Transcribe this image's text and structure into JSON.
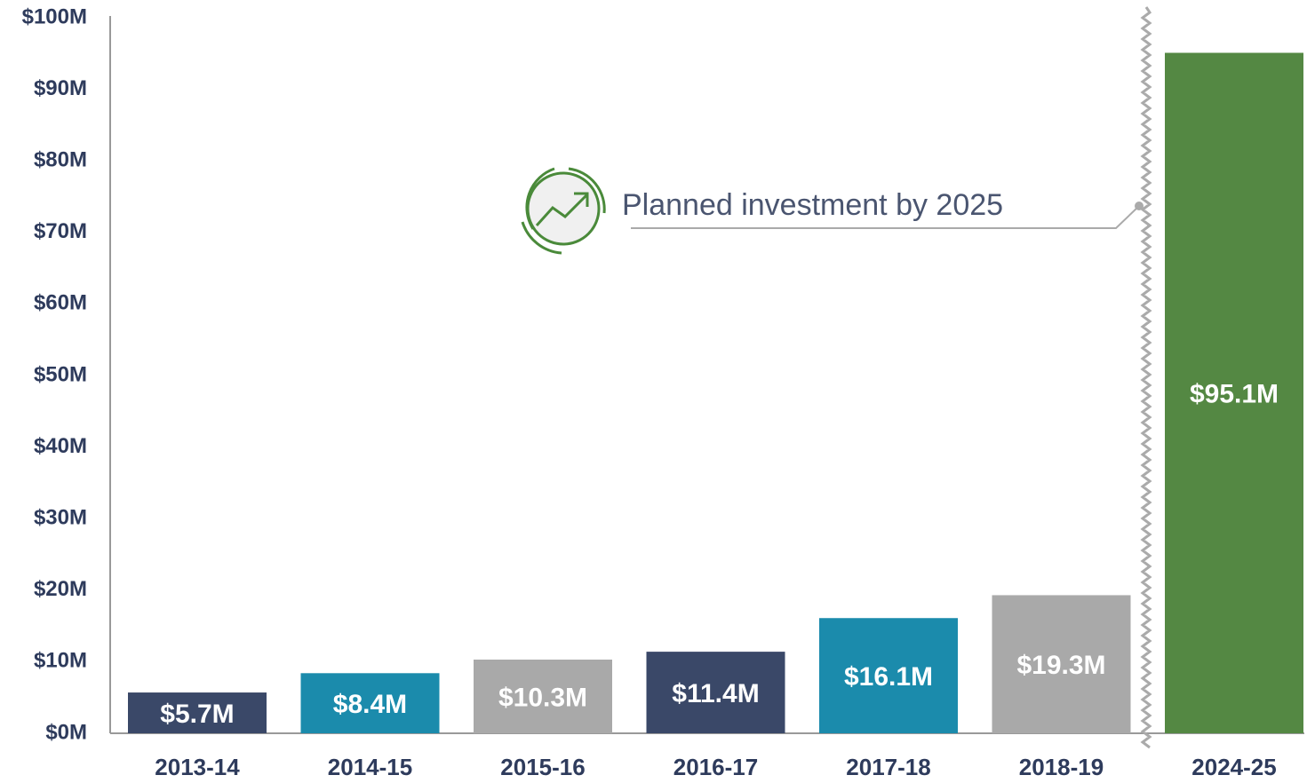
{
  "chart_data": {
    "type": "bar",
    "categories": [
      "2013-14",
      "2014-15",
      "2015-16",
      "2016-17",
      "2017-18",
      "2018-19",
      "2024-25"
    ],
    "values": [
      5.7,
      8.4,
      10.3,
      11.4,
      16.1,
      19.3,
      95.1
    ],
    "value_labels": [
      "$5.7M",
      "$8.4M",
      "$10.3M",
      "$11.4M",
      "$16.1M",
      "$19.3M",
      "$95.1M"
    ],
    "colors": [
      "#3a4868",
      "#1b8bac",
      "#a9a9a9",
      "#3a4868",
      "#1b8bac",
      "#a9a9a9",
      "#548843"
    ],
    "ylim": [
      0,
      100
    ],
    "yticks": [
      {
        "value": 0,
        "label": "$0M"
      },
      {
        "value": 10,
        "label": "$10M"
      },
      {
        "value": 20,
        "label": "$20M"
      },
      {
        "value": 30,
        "label": "$30M"
      },
      {
        "value": 40,
        "label": "$40M"
      },
      {
        "value": 50,
        "label": "$50M"
      },
      {
        "value": 60,
        "label": "$60M"
      },
      {
        "value": 70,
        "label": "$70M"
      },
      {
        "value": 80,
        "label": "$80M"
      },
      {
        "value": 90,
        "label": "$90M"
      },
      {
        "value": 100,
        "label": "$100M"
      }
    ],
    "annotation": "Planned investment by 2025",
    "grid": false
  }
}
